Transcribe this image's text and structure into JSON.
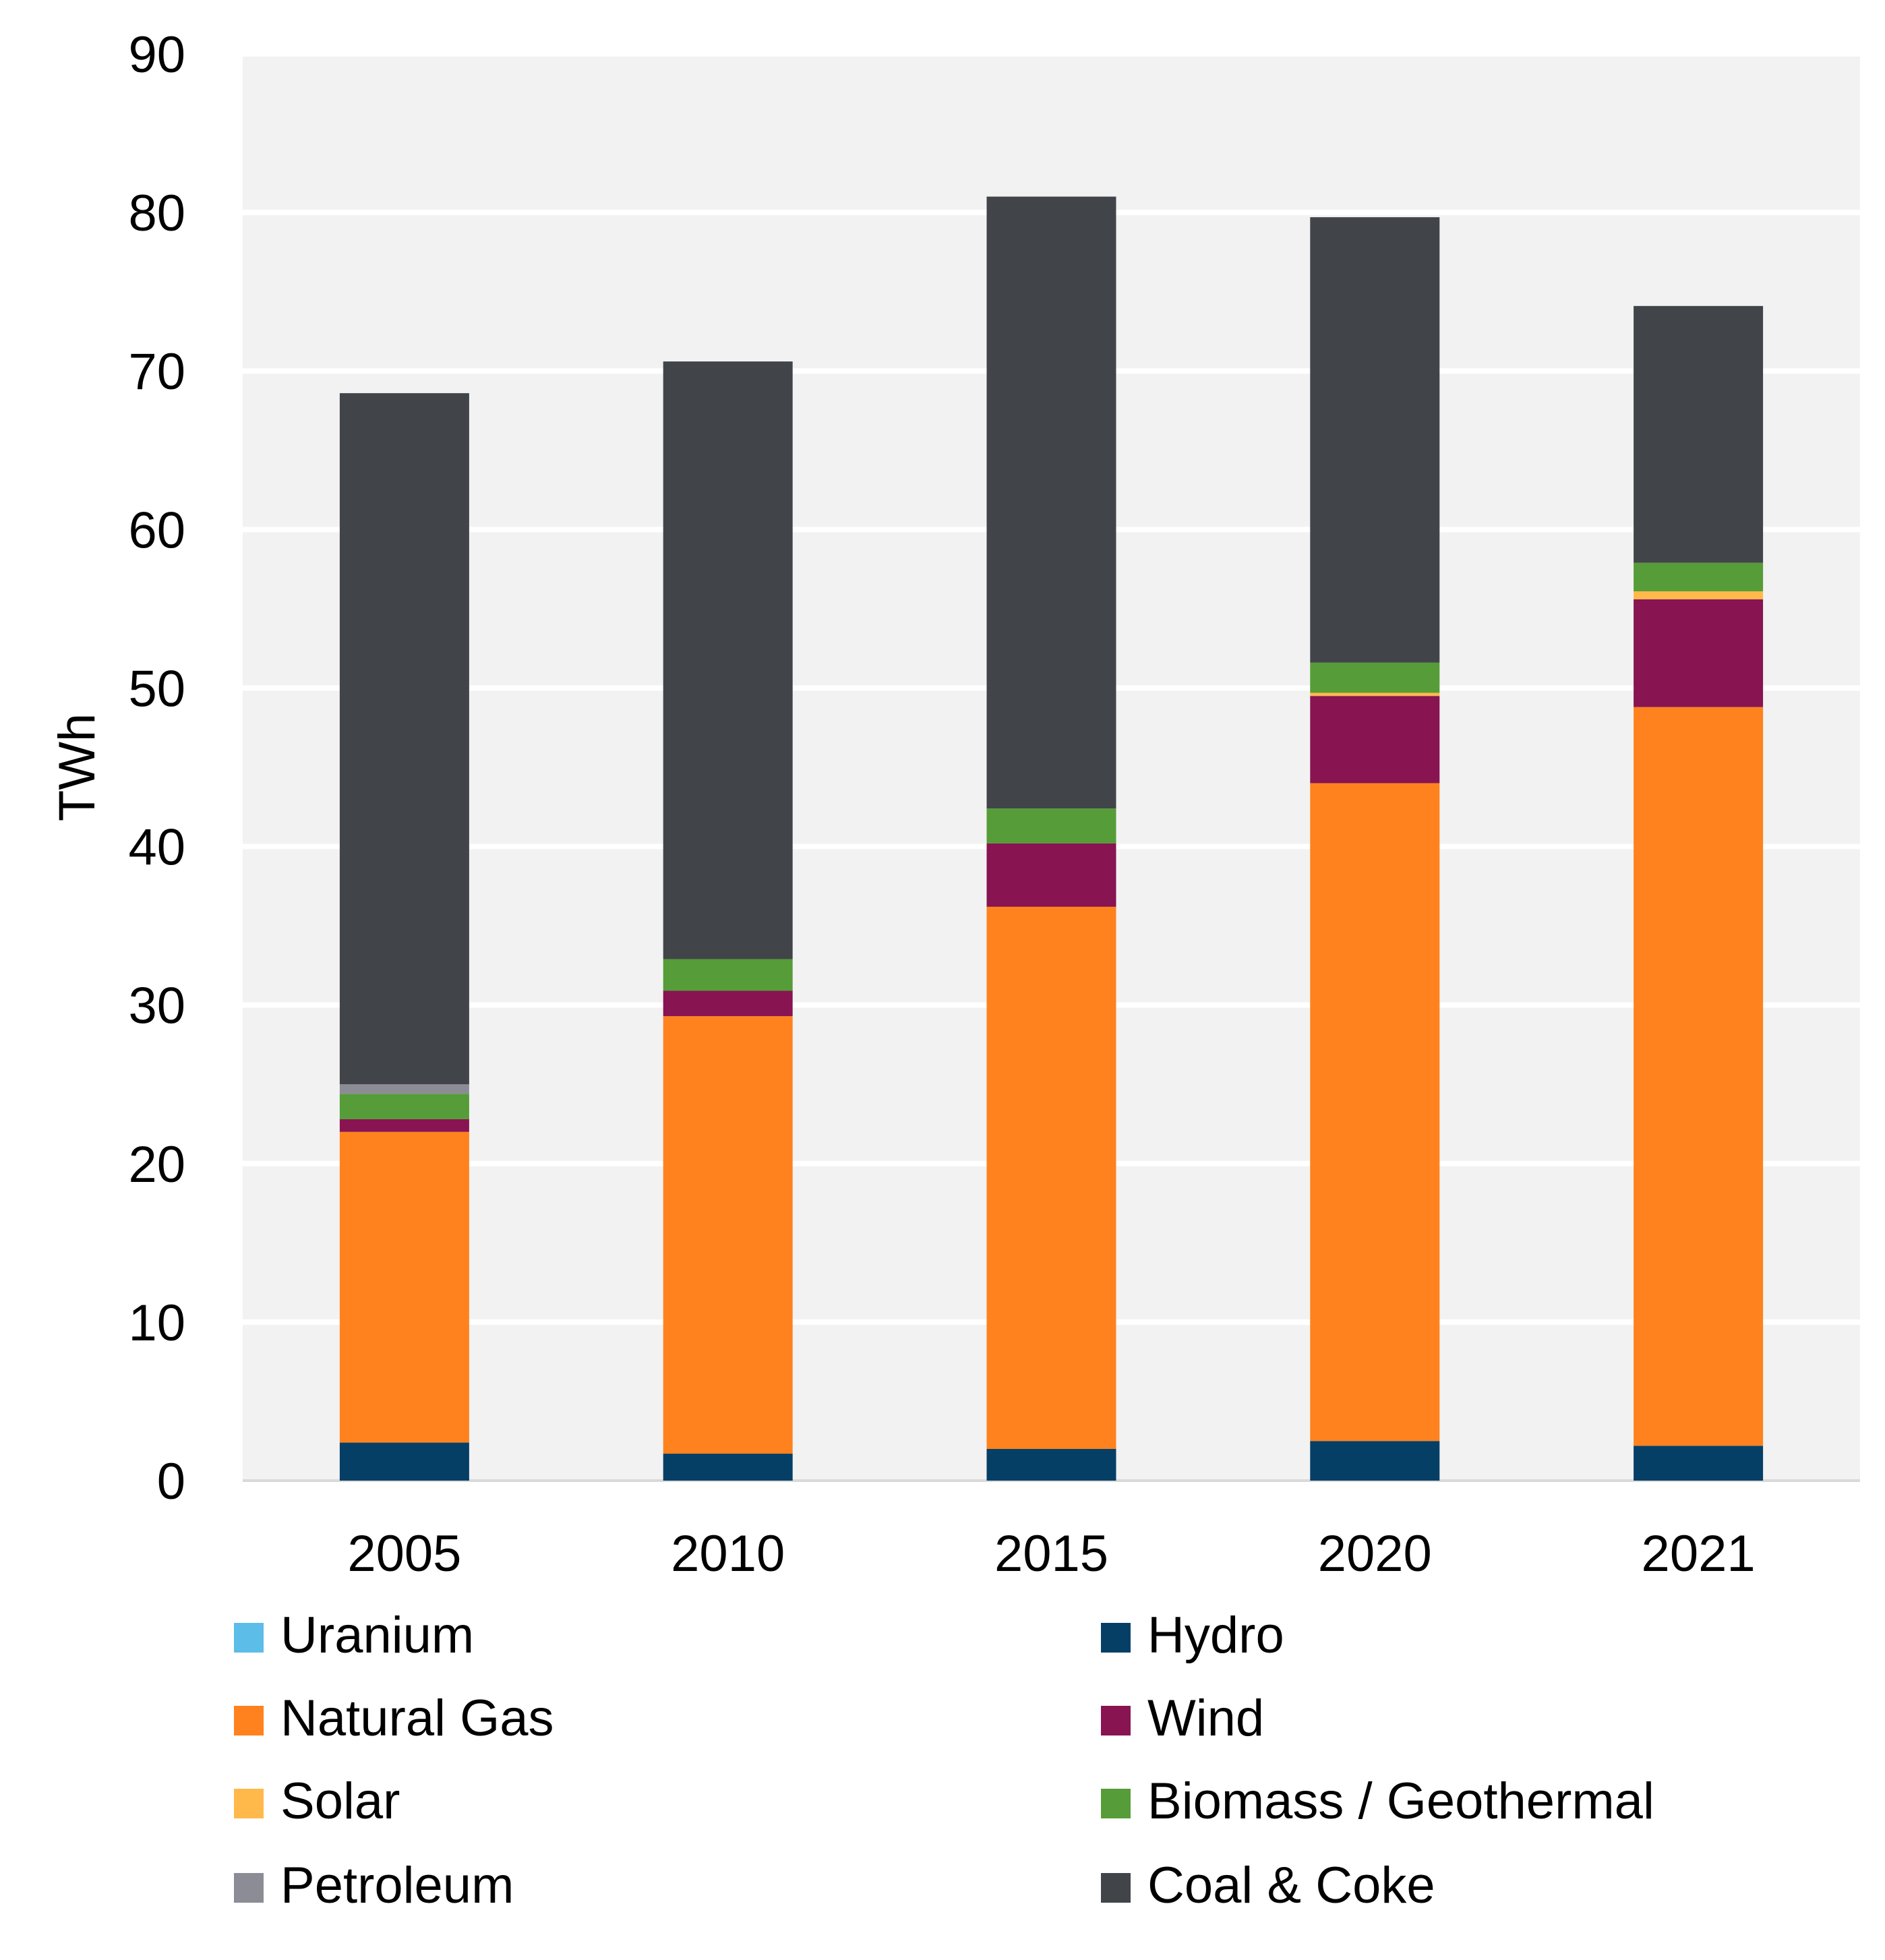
{
  "chart_data": {
    "type": "bar",
    "stacked": true,
    "title": "",
    "xlabel": "",
    "ylabel": "TWh",
    "ylim": [
      0,
      90
    ],
    "yticks": [
      0,
      10,
      20,
      30,
      40,
      50,
      60,
      70,
      80,
      90
    ],
    "grid": true,
    "legend_placement": "bottom",
    "categories": [
      "2005",
      "2010",
      "2015",
      "2020",
      "2021"
    ],
    "series": [
      {
        "name": "Uranium",
        "color": "#5BBDE8",
        "values": [
          0,
          0,
          0,
          0,
          0
        ]
      },
      {
        "name": "Hydro",
        "color": "#063F66",
        "values": [
          2.4,
          1.7,
          2.0,
          2.5,
          2.2
        ]
      },
      {
        "name": "Natural Gas",
        "color": "#FF821E",
        "values": [
          19.6,
          27.6,
          34.2,
          41.5,
          46.6
        ]
      },
      {
        "name": "Wind",
        "color": "#881452",
        "values": [
          0.8,
          1.6,
          4.0,
          5.5,
          6.8
        ]
      },
      {
        "name": "Solar",
        "color": "#FFB94A",
        "values": [
          0,
          0,
          0,
          0.2,
          0.5
        ]
      },
      {
        "name": "Biomass / Geothermal",
        "color": "#569C38",
        "values": [
          1.6,
          2.0,
          2.2,
          1.9,
          1.8
        ]
      },
      {
        "name": "Petroleum",
        "color": "#8C8C96",
        "values": [
          0.6,
          0,
          0,
          0,
          0
        ]
      },
      {
        "name": "Coal & Coke",
        "color": "#414549",
        "values": [
          43.6,
          37.7,
          38.6,
          28.1,
          16.2
        ]
      }
    ],
    "plot_background": "#F2F2F2"
  }
}
